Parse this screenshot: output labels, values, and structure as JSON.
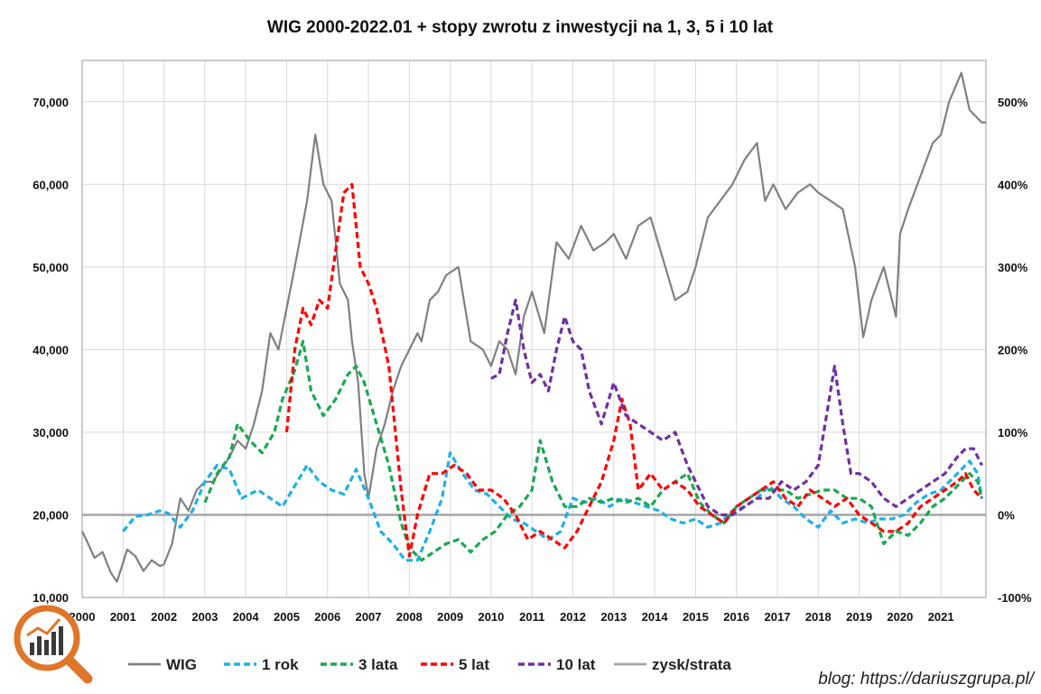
{
  "chart_data": {
    "type": "line",
    "title": "WIG 2000-2022.01 + stopy zwrotu z inwestycji na 1, 3, 5 i 10 lat",
    "xlabel": "",
    "ylabel": "",
    "x_ticks": [
      "2000",
      "2001",
      "2002",
      "2003",
      "2004",
      "2005",
      "2006",
      "2007",
      "2008",
      "2009",
      "2010",
      "2011",
      "2012",
      "2013",
      "2014",
      "2015",
      "2016",
      "2017",
      "2018",
      "2019",
      "2020",
      "2021"
    ],
    "xlim": [
      2000,
      2022.1
    ],
    "y_left": {
      "ticks": [
        "10,000",
        "20,000",
        "30,000",
        "40,000",
        "50,000",
        "60,000",
        "70,000"
      ],
      "range": [
        10000,
        75000
      ]
    },
    "y_right": {
      "ticks": [
        "-100%",
        "0%",
        "100%",
        "200%",
        "300%",
        "400%",
        "500%"
      ],
      "range": [
        -100,
        550
      ]
    },
    "grid": true,
    "legend_position": "bottom",
    "series": [
      {
        "name": "WIG",
        "axis": "left",
        "color": "#808080",
        "style": "solid",
        "x": [
          2000.0,
          2000.1,
          2000.3,
          2000.5,
          2000.7,
          2000.85,
          2001.0,
          2001.1,
          2001.3,
          2001.5,
          2001.7,
          2001.9,
          2002.0,
          2002.2,
          2002.4,
          2002.6,
          2002.8,
          2003.0,
          2003.2,
          2003.4,
          2003.6,
          2003.8,
          2004.0,
          2004.2,
          2004.4,
          2004.6,
          2004.8,
          2005.0,
          2005.2,
          2005.35,
          2005.5,
          2005.7,
          2005.9,
          2006.1,
          2006.3,
          2006.5,
          2006.6,
          2006.75,
          2006.9,
          2007.0,
          2007.2,
          2007.4,
          2007.6,
          2007.8,
          2008.0,
          2008.2,
          2008.3,
          2008.5,
          2008.7,
          2008.9,
          2009.2,
          2009.5,
          2009.8,
          2010.0,
          2010.2,
          2010.4,
          2010.6,
          2010.8,
          2011.0,
          2011.3,
          2011.6,
          2011.9,
          2012.2,
          2012.5,
          2012.8,
          2013.0,
          2013.3,
          2013.6,
          2013.9,
          2014.2,
          2014.5,
          2014.8,
          2015.0,
          2015.3,
          2015.6,
          2015.9,
          2016.2,
          2016.5,
          2016.7,
          2016.9,
          2017.2,
          2017.5,
          2017.8,
          2018.0,
          2018.3,
          2018.6,
          2018.9,
          2019.1,
          2019.3,
          2019.6,
          2019.9,
          2020.0,
          2020.2,
          2020.5,
          2020.8,
          2021.0,
          2021.2,
          2021.5,
          2021.7,
          2021.9,
          2022.0,
          2022.1
        ],
        "y": [
          18000,
          17000,
          14800,
          15500,
          13000,
          11900,
          14200,
          15800,
          15000,
          13200,
          14500,
          13800,
          14000,
          16500,
          22000,
          20500,
          23000,
          24000,
          24000,
          25500,
          27000,
          29000,
          28000,
          31000,
          35000,
          42000,
          40000,
          45000,
          50000,
          54000,
          58000,
          66000,
          60000,
          58000,
          48000,
          46000,
          41000,
          36000,
          25000,
          22000,
          28000,
          31000,
          35000,
          38000,
          40000,
          42000,
          41000,
          46000,
          47000,
          49000,
          50000,
          41000,
          40000,
          38000,
          41000,
          40000,
          37000,
          44000,
          47000,
          42000,
          53000,
          51000,
          55000,
          52000,
          53000,
          54000,
          51000,
          55000,
          56000,
          51000,
          46000,
          47000,
          50000,
          56000,
          58000,
          60000,
          63000,
          65000,
          58000,
          60000,
          57000,
          59000,
          60000,
          59000,
          58000,
          57000,
          50000,
          41500,
          46000,
          50000,
          44000,
          54000,
          57000,
          61000,
          65000,
          66000,
          70000,
          73500,
          69000,
          68000,
          67500,
          67500
        ]
      },
      {
        "name": "1 rok",
        "axis": "right",
        "color": "#1fb0e6",
        "style": "dashed",
        "x": [
          2001.0,
          2001.3,
          2001.6,
          2001.9,
          2002.1,
          2002.4,
          2002.7,
          2003.0,
          2003.3,
          2003.6,
          2003.9,
          2004.3,
          2004.6,
          2004.9,
          2005.2,
          2005.5,
          2005.8,
          2006.1,
          2006.4,
          2006.7,
          2007.0,
          2007.3,
          2007.6,
          2007.9,
          2008.2,
          2008.5,
          2008.8,
          2009.0,
          2009.3,
          2009.6,
          2009.9,
          2010.2,
          2010.5,
          2010.8,
          2011.1,
          2011.4,
          2011.7,
          2012.0,
          2012.3,
          2012.6,
          2012.9,
          2013.2,
          2013.5,
          2013.8,
          2014.1,
          2014.4,
          2014.7,
          2015.0,
          2015.3,
          2015.6,
          2015.9,
          2016.2,
          2016.5,
          2016.8,
          2017.1,
          2017.4,
          2017.7,
          2018.0,
          2018.3,
          2018.6,
          2018.9,
          2019.2,
          2019.5,
          2019.8,
          2020.1,
          2020.4,
          2020.7,
          2021.0,
          2021.3,
          2021.5,
          2021.7,
          2021.9,
          2022.0
        ],
        "y": [
          -20,
          -2,
          0,
          5,
          2,
          -15,
          5,
          40,
          60,
          55,
          20,
          30,
          20,
          10,
          35,
          60,
          40,
          30,
          25,
          55,
          20,
          -20,
          -35,
          -55,
          -55,
          -20,
          20,
          75,
          50,
          30,
          25,
          10,
          -5,
          -10,
          -20,
          -30,
          -20,
          20,
          15,
          20,
          10,
          20,
          15,
          10,
          5,
          -5,
          -10,
          -5,
          -15,
          -10,
          5,
          10,
          20,
          35,
          20,
          10,
          -5,
          -15,
          5,
          -10,
          -5,
          -10,
          -5,
          -5,
          0,
          15,
          25,
          30,
          45,
          55,
          65,
          50,
          20
        ]
      },
      {
        "name": "3 lata",
        "axis": "right",
        "color": "#1aa851",
        "style": "dashed",
        "x": [
          2003.0,
          2003.3,
          2003.6,
          2003.8,
          2004.1,
          2004.4,
          2004.7,
          2004.9,
          2005.2,
          2005.4,
          2005.6,
          2005.9,
          2006.2,
          2006.5,
          2006.7,
          2006.9,
          2007.2,
          2007.5,
          2007.8,
          2008.0,
          2008.3,
          2008.6,
          2008.9,
          2009.2,
          2009.5,
          2009.8,
          2010.1,
          2010.4,
          2010.7,
          2011.0,
          2011.2,
          2011.5,
          2011.8,
          2012.1,
          2012.4,
          2012.7,
          2013.0,
          2013.3,
          2013.6,
          2013.9,
          2014.2,
          2014.5,
          2014.8,
          2015.1,
          2015.4,
          2015.7,
          2016.0,
          2016.3,
          2016.6,
          2016.9,
          2017.2,
          2017.5,
          2017.8,
          2018.1,
          2018.4,
          2018.7,
          2019.0,
          2019.3,
          2019.6,
          2019.9,
          2020.2,
          2020.5,
          2020.8,
          2021.1,
          2021.3,
          2021.5,
          2021.7,
          2021.9,
          2022.0
        ],
        "y": [
          15,
          50,
          70,
          110,
          90,
          75,
          100,
          140,
          175,
          210,
          150,
          120,
          140,
          170,
          180,
          160,
          110,
          60,
          -10,
          -40,
          -55,
          -45,
          -35,
          -30,
          -45,
          -30,
          -20,
          0,
          10,
          30,
          90,
          40,
          10,
          10,
          20,
          15,
          20,
          15,
          20,
          10,
          30,
          40,
          50,
          15,
          0,
          -10,
          10,
          20,
          30,
          30,
          30,
          20,
          25,
          30,
          30,
          20,
          20,
          10,
          -35,
          -20,
          -25,
          -10,
          10,
          20,
          30,
          40,
          50,
          40,
          20
        ]
      },
      {
        "name": "5 lat",
        "axis": "right",
        "color": "#ff0000",
        "style": "dashed",
        "x": [
          2005.0,
          2005.2,
          2005.4,
          2005.6,
          2005.8,
          2006.0,
          2006.2,
          2006.4,
          2006.6,
          2006.8,
          2007.0,
          2007.2,
          2007.5,
          2007.8,
          2008.0,
          2008.2,
          2008.5,
          2008.8,
          2009.1,
          2009.4,
          2009.7,
          2010.0,
          2010.3,
          2010.6,
          2010.9,
          2011.2,
          2011.5,
          2011.8,
          2012.1,
          2012.4,
          2012.7,
          2013.0,
          2013.2,
          2013.4,
          2013.6,
          2013.9,
          2014.2,
          2014.5,
          2014.8,
          2015.1,
          2015.4,
          2015.7,
          2016.0,
          2016.3,
          2016.6,
          2016.9,
          2017.2,
          2017.5,
          2017.8,
          2018.1,
          2018.4,
          2018.7,
          2019.0,
          2019.3,
          2019.6,
          2019.9,
          2020.2,
          2020.5,
          2020.8,
          2021.1,
          2021.4,
          2021.6,
          2021.8,
          2022.0
        ],
        "y": [
          100,
          200,
          250,
          230,
          260,
          250,
          320,
          390,
          400,
          300,
          280,
          250,
          180,
          30,
          -50,
          0,
          50,
          50,
          60,
          50,
          30,
          30,
          20,
          0,
          -30,
          -20,
          -30,
          -40,
          -20,
          10,
          40,
          90,
          140,
          110,
          30,
          50,
          30,
          40,
          30,
          10,
          0,
          -10,
          10,
          20,
          30,
          40,
          20,
          10,
          30,
          20,
          10,
          20,
          0,
          -10,
          -20,
          -20,
          -10,
          10,
          20,
          30,
          40,
          50,
          30,
          20
        ]
      },
      {
        "name": "10 lat",
        "axis": "right",
        "color": "#7030a0",
        "style": "dashed",
        "x": [
          2010.0,
          2010.2,
          2010.4,
          2010.6,
          2010.8,
          2011.0,
          2011.2,
          2011.4,
          2011.6,
          2011.8,
          2012.0,
          2012.2,
          2012.4,
          2012.7,
          2013.0,
          2013.3,
          2013.6,
          2013.9,
          2014.2,
          2014.5,
          2014.8,
          2015.0,
          2015.3,
          2015.6,
          2015.9,
          2016.2,
          2016.5,
          2016.8,
          2017.1,
          2017.4,
          2017.7,
          2018.0,
          2018.2,
          2018.4,
          2018.6,
          2018.8,
          2019.0,
          2019.3,
          2019.6,
          2019.9,
          2020.2,
          2020.5,
          2020.8,
          2021.1,
          2021.4,
          2021.6,
          2021.8,
          2022.0
        ],
        "y": [
          165,
          170,
          220,
          260,
          200,
          160,
          170,
          150,
          200,
          240,
          210,
          200,
          150,
          110,
          160,
          120,
          110,
          100,
          90,
          100,
          60,
          40,
          10,
          0,
          0,
          10,
          20,
          20,
          40,
          30,
          40,
          60,
          120,
          180,
          110,
          50,
          50,
          40,
          20,
          10,
          20,
          30,
          40,
          50,
          70,
          80,
          80,
          60
        ]
      },
      {
        "name": "zysk/strata",
        "axis": "right",
        "color": "#a6a6a6",
        "style": "solid",
        "x": [
          2000.0,
          2022.1
        ],
        "y": [
          0,
          0
        ]
      }
    ],
    "blog_label": "blog: https://dariuszgrupa.pl/"
  }
}
